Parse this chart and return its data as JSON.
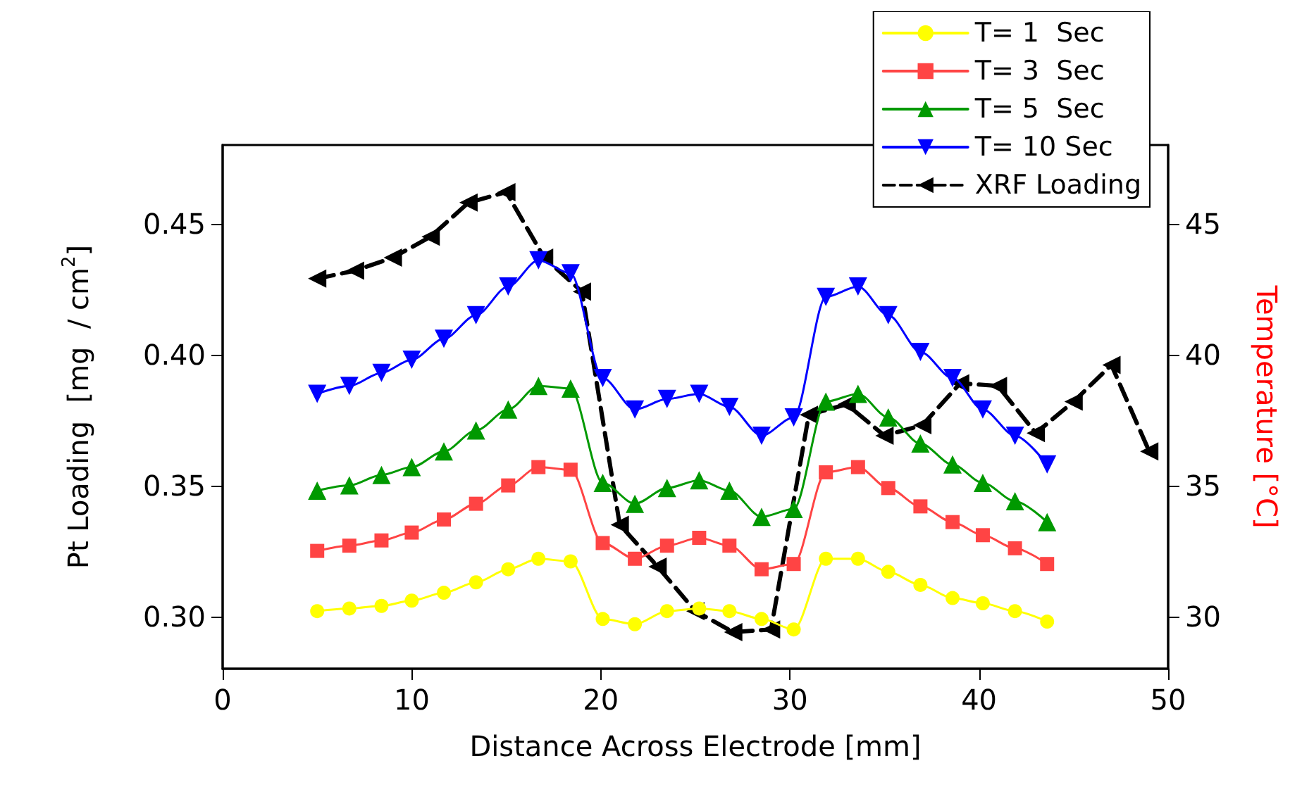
{
  "chart_data": {
    "type": "line",
    "xlabel": "Distance Across Electrode [mm]",
    "ylabel": "Pt Loading  [mg  / cm$^{2}$]",
    "y2label": "Temperature [°C]",
    "xlim": [
      0,
      50
    ],
    "xticks": [
      0,
      10,
      20,
      30,
      40,
      50
    ],
    "ylim": [
      0.28,
      0.48
    ],
    "yticks": [
      {
        "value": 0.3,
        "label": "0.30"
      },
      {
        "value": 0.35,
        "label": "0.35"
      },
      {
        "value": 0.4,
        "label": "0.40"
      },
      {
        "value": 0.45,
        "label": "0.45"
      }
    ],
    "y2lim": [
      28,
      48
    ],
    "y2ticks": [
      30,
      35,
      40,
      45
    ],
    "grid": false,
    "legend": "top right",
    "series": [
      {
        "name": "T= 1  Sec",
        "color": "#ffff00",
        "axis": "y2",
        "marker": "circle",
        "line_style": "solid",
        "x": [
          5.0,
          6.7,
          8.4,
          10.0,
          11.7,
          13.4,
          15.1,
          16.7,
          18.4,
          20.1,
          21.8,
          23.5,
          25.2,
          26.8,
          28.5,
          30.2,
          31.9,
          33.6,
          35.2,
          36.9,
          38.6,
          40.2,
          41.9,
          43.6
        ],
        "values": [
          30.2,
          30.3,
          30.4,
          30.6,
          30.9,
          31.3,
          31.8,
          32.2,
          32.1,
          29.9,
          29.7,
          30.2,
          30.3,
          30.2,
          29.9,
          29.5,
          32.2,
          32.2,
          31.7,
          31.2,
          30.7,
          30.5,
          30.2,
          29.8
        ]
      },
      {
        "name": "T= 3  Sec",
        "color": "#ff4444",
        "axis": "y2",
        "marker": "square",
        "line_style": "solid",
        "x": [
          5.0,
          6.7,
          8.4,
          10.0,
          11.7,
          13.4,
          15.1,
          16.7,
          18.4,
          20.1,
          21.8,
          23.5,
          25.2,
          26.8,
          28.5,
          30.2,
          31.9,
          33.6,
          35.2,
          36.9,
          38.6,
          40.2,
          41.9,
          43.6
        ],
        "values": [
          32.5,
          32.7,
          32.9,
          33.2,
          33.7,
          34.3,
          35.0,
          35.7,
          35.6,
          32.8,
          32.2,
          32.7,
          33.0,
          32.7,
          31.8,
          32.0,
          35.5,
          35.7,
          34.9,
          34.2,
          33.6,
          33.1,
          32.6,
          32.0
        ]
      },
      {
        "name": "T= 5  Sec",
        "color": "#009900",
        "axis": "y2",
        "marker": "triangle",
        "line_style": "solid",
        "x": [
          5.0,
          6.7,
          8.4,
          10.0,
          11.7,
          13.4,
          15.1,
          16.7,
          18.4,
          20.1,
          21.8,
          23.5,
          25.2,
          26.8,
          28.5,
          30.2,
          31.9,
          33.6,
          35.2,
          36.9,
          38.6,
          40.2,
          41.9,
          43.6
        ],
        "values": [
          34.8,
          35.0,
          35.4,
          35.7,
          36.3,
          37.1,
          37.9,
          38.8,
          38.7,
          35.1,
          34.3,
          34.9,
          35.2,
          34.8,
          33.8,
          34.1,
          38.2,
          38.5,
          37.6,
          36.6,
          35.8,
          35.1,
          34.4,
          33.6
        ]
      },
      {
        "name": "T= 10 Sec",
        "color": "#0000ff",
        "axis": "y2",
        "marker": "triangle-down",
        "line_style": "solid",
        "x": [
          5.0,
          6.7,
          8.4,
          10.0,
          11.7,
          13.4,
          15.1,
          16.7,
          18.4,
          20.1,
          21.8,
          23.5,
          25.2,
          26.8,
          28.5,
          30.2,
          31.9,
          33.6,
          35.2,
          36.9,
          38.6,
          40.2,
          41.9,
          43.6
        ],
        "values": [
          38.5,
          38.8,
          39.3,
          39.8,
          40.6,
          41.5,
          42.6,
          43.6,
          43.1,
          39.1,
          37.9,
          38.3,
          38.5,
          38.0,
          36.9,
          37.6,
          42.2,
          42.6,
          41.5,
          40.1,
          39.1,
          37.9,
          36.9,
          35.8
        ]
      },
      {
        "name": "XRF Loading",
        "color": "#000000",
        "axis": "y",
        "marker": "triangle-left",
        "line_style": "dashed",
        "x": [
          5,
          7,
          9,
          11,
          13,
          15,
          17,
          19,
          21,
          23,
          25,
          27,
          29,
          31,
          33,
          35,
          37,
          39,
          41,
          43,
          45,
          47,
          49
        ],
        "values": [
          0.429,
          0.432,
          0.437,
          0.445,
          0.458,
          0.462,
          0.437,
          0.424,
          0.335,
          0.319,
          0.302,
          0.294,
          0.295,
          0.377,
          0.381,
          0.369,
          0.373,
          0.389,
          0.388,
          0.37,
          0.382,
          0.396,
          0.363
        ]
      }
    ]
  }
}
